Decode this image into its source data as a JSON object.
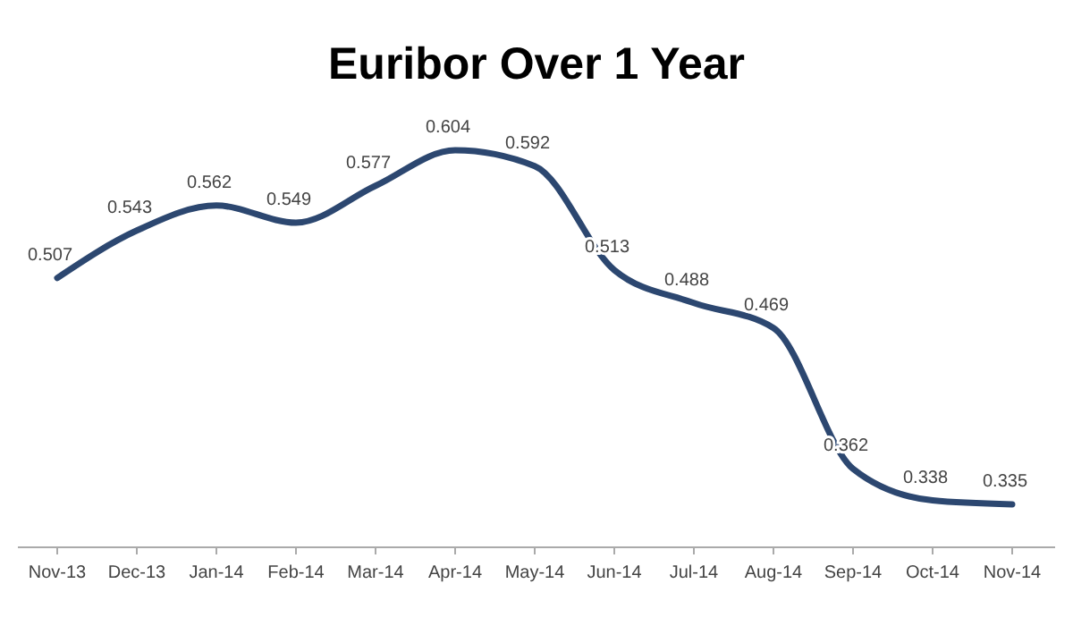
{
  "chart_data": {
    "type": "line",
    "title": "Euribor Over 1 Year",
    "categories": [
      "Nov-13",
      "Dec-13",
      "Jan-14",
      "Feb-14",
      "Mar-14",
      "Apr-14",
      "May-14",
      "Jun-14",
      "Jul-14",
      "Aug-14",
      "Sep-14",
      "Oct-14",
      "Nov-14"
    ],
    "series": [
      {
        "color": "#2c4770",
        "values": [
          0.507,
          0.543,
          0.562,
          0.549,
          0.577,
          0.604,
          0.592,
          0.513,
          0.488,
          0.469,
          0.362,
          0.338,
          0.335
        ]
      }
    ],
    "data_labels": true
  }
}
